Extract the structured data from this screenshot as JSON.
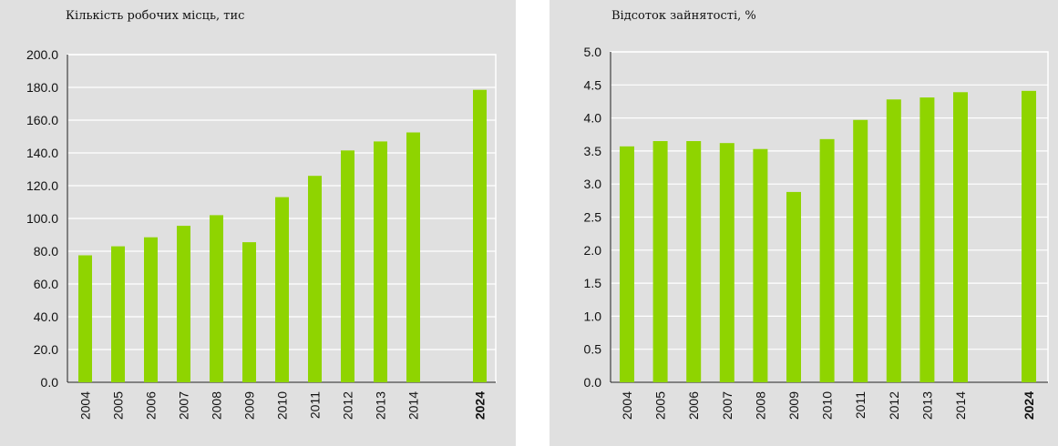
{
  "chart_data": [
    {
      "type": "bar",
      "title": "Кількість робочих місць, тис",
      "xlabel": "",
      "ylabel": "",
      "categories": [
        "2004",
        "2005",
        "2006",
        "2007",
        "2008",
        "2009",
        "2010",
        "2011",
        "2012",
        "2013",
        "2014",
        "2024"
      ],
      "emphasized_categories": [
        "2024"
      ],
      "values": [
        77.5,
        83.0,
        88.5,
        95.5,
        102.0,
        85.5,
        113.0,
        126.0,
        141.5,
        147.0,
        152.5,
        178.5
      ],
      "ylim": [
        0,
        200
      ],
      "yticks": [
        "0.0",
        "20.0",
        "40.0",
        "60.0",
        "80.0",
        "100.0",
        "120.0",
        "140.0",
        "160.0",
        "180.0",
        "200.0"
      ],
      "grid": true,
      "bar_color": "#8fd400",
      "background": "#e0e0e0"
    },
    {
      "type": "bar",
      "title": "Відсоток зайнятості, %",
      "xlabel": "",
      "ylabel": "",
      "categories": [
        "2004",
        "2005",
        "2006",
        "2007",
        "2008",
        "2009",
        "2010",
        "2011",
        "2012",
        "2013",
        "2014",
        "2024"
      ],
      "emphasized_categories": [
        "2024"
      ],
      "values": [
        3.57,
        3.65,
        3.65,
        3.62,
        3.53,
        2.88,
        3.68,
        3.97,
        4.28,
        4.31,
        4.39,
        4.41
      ],
      "ylim": [
        0,
        5
      ],
      "yticks": [
        "0.0",
        "0.5",
        "1.0",
        "1.5",
        "2.0",
        "2.5",
        "3.0",
        "3.5",
        "4.0",
        "4.5",
        "5.0"
      ],
      "grid": true,
      "bar_color": "#8fd400",
      "background": "#e0e0e0"
    }
  ]
}
